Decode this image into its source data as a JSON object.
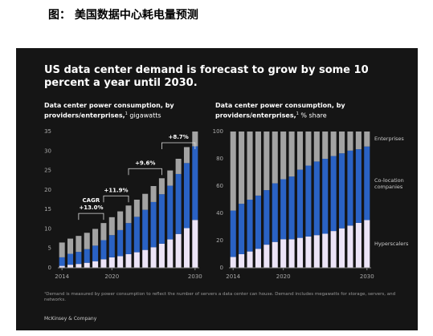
{
  "caption": "图： 美国数据中心耗电量预测",
  "title": "US data center demand is forecast to grow by some 10 percent a year until 2030.",
  "footnote": "¹Demand is measured by power consumption to reflect the number of servers a data center can house. Demand includes megawatts for storage, servers, and networks.",
  "source": "McKinsey & Company",
  "chart_data": [
    {
      "type": "stacked_bar",
      "subtitle": "Data center power consumption, by providers/enterprises,",
      "subtitle_note": "1",
      "unit": "gigawatts",
      "categories": [
        "2014",
        null,
        null,
        null,
        null,
        null,
        "2020",
        null,
        null,
        null,
        null,
        null,
        null,
        null,
        null,
        null,
        "2030"
      ],
      "series": [
        {
          "color": "#ece4f7",
          "values": [
            0.5,
            0.8,
            1.0,
            1.3,
            1.7,
            2.2,
            2.7,
            3.0,
            3.5,
            4.0,
            4.6,
            5.3,
            6.2,
            7.3,
            8.7,
            10.2,
            12.3
          ]
        },
        {
          "color": "#2a62c4",
          "values": [
            2.2,
            2.8,
            3.1,
            3.5,
            4.0,
            4.9,
            5.7,
            6.7,
            8.0,
            9.1,
            10.3,
            11.6,
            12.7,
            13.8,
            15.4,
            16.7,
            18.9
          ]
        },
        {
          "color": "#a3a3a3",
          "values": [
            3.8,
            3.9,
            4.1,
            4.2,
            4.3,
            4.4,
            4.6,
            4.8,
            4.5,
            4.4,
            4.1,
            4.1,
            4.1,
            3.9,
            3.9,
            4.1,
            3.8
          ]
        }
      ],
      "annotations": [
        "CAGR",
        "+13.0%",
        "+11.9%",
        "+9.6%",
        "+8.7%"
      ],
      "ylim": [
        0,
        35
      ],
      "yticks": [
        0,
        5,
        10,
        15,
        20,
        25,
        30,
        35
      ],
      "grid": false
    },
    {
      "type": "stacked_bar",
      "subtitle": "Data center power consumption, by providers/enterprises,",
      "subtitle_note": "1",
      "unit": "% share",
      "categories": [
        "2014",
        null,
        null,
        null,
        null,
        null,
        "2020",
        null,
        null,
        null,
        null,
        null,
        null,
        null,
        null,
        null,
        "2030"
      ],
      "series": [
        {
          "name": "Hyperscalers",
          "color": "#ece4f7",
          "values": [
            8,
            10,
            12,
            14,
            17,
            19,
            21,
            21,
            22,
            23,
            24,
            25,
            27,
            29,
            31,
            33,
            35
          ]
        },
        {
          "name": "Co-location companies",
          "color": "#2a62c4",
          "values": [
            34,
            37,
            38,
            39,
            40,
            43,
            44,
            46,
            50,
            52,
            54,
            55,
            55,
            55,
            55,
            54,
            54
          ]
        },
        {
          "name": "Enterprises",
          "color": "#a3a3a3",
          "values": [
            58,
            53,
            50,
            47,
            43,
            38,
            35,
            33,
            28,
            25,
            22,
            20,
            18,
            16,
            14,
            13,
            11
          ]
        }
      ],
      "ylim": [
        0,
        100
      ],
      "yticks": [
        0,
        20,
        40,
        60,
        80,
        100
      ],
      "grid": false
    }
  ]
}
